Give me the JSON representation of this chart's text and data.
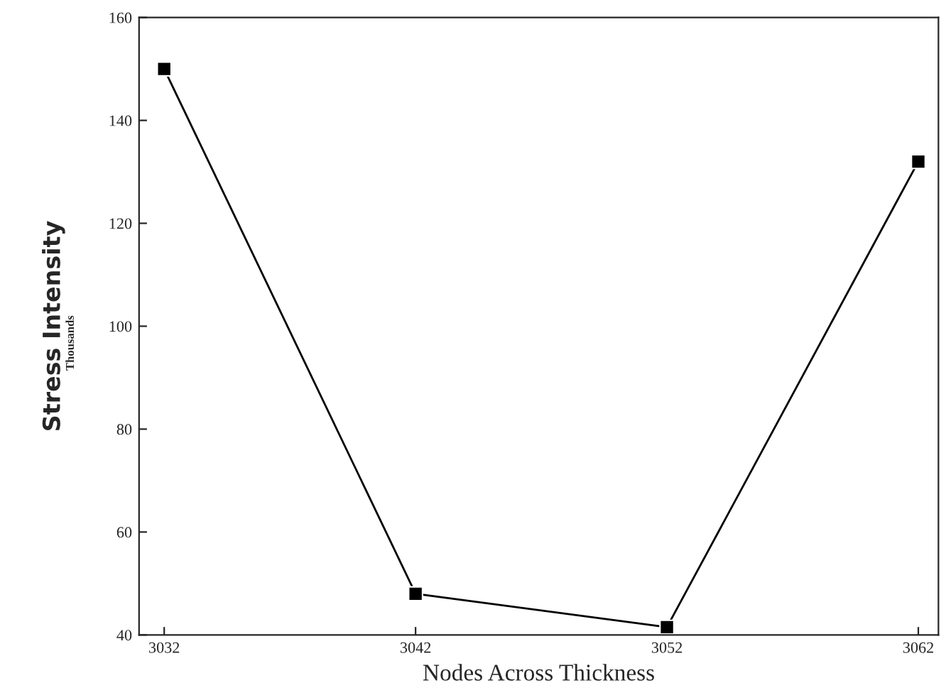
{
  "chart_data": {
    "type": "line",
    "xlabel": "Nodes Across Thickness",
    "ylabel": "Stress Intensity",
    "annotations": [
      "Thousands"
    ],
    "x": [
      3032,
      3042,
      3052,
      3062
    ],
    "series": [
      {
        "color": "#000000",
        "values": [
          150,
          48,
          41.5,
          132
        ]
      }
    ],
    "xlim": [
      3031,
      3062.8
    ],
    "xticks": [
      3032,
      3042,
      3052,
      3062
    ],
    "ylim": [
      40,
      160
    ],
    "yticks": [
      40,
      60,
      80,
      100,
      120,
      140,
      160
    ],
    "marker": "square",
    "line_style": "solid",
    "grid": false,
    "legend": false
  }
}
